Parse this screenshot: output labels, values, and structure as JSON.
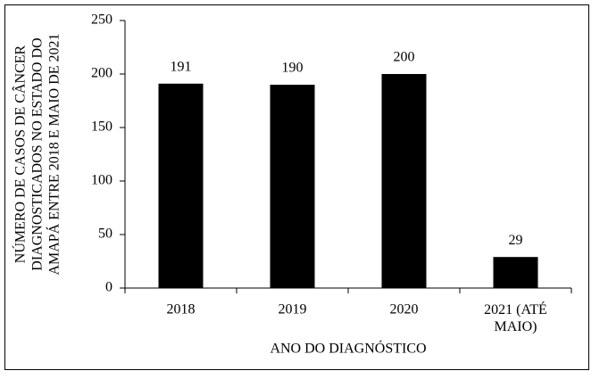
{
  "chart_data": {
    "type": "bar",
    "ylabel": [
      "NÚMERO DE CASOS DE CÂNCER",
      "DIAGNOSTICADOS  NO ESTADO DO",
      "AMAPÁ ENTRE 2018 E MAIO DE 2021"
    ],
    "xlabel": "ANO DO DIAGNÓSTICO",
    "categories": [
      "2018",
      "2019",
      "2020",
      "2021 (ATÉ MAIO)"
    ],
    "values": [
      191,
      190,
      200,
      29
    ],
    "color": "#000000",
    "ylim": [
      0,
      250
    ],
    "yticks": [
      0,
      50,
      100,
      150,
      200,
      250
    ]
  }
}
